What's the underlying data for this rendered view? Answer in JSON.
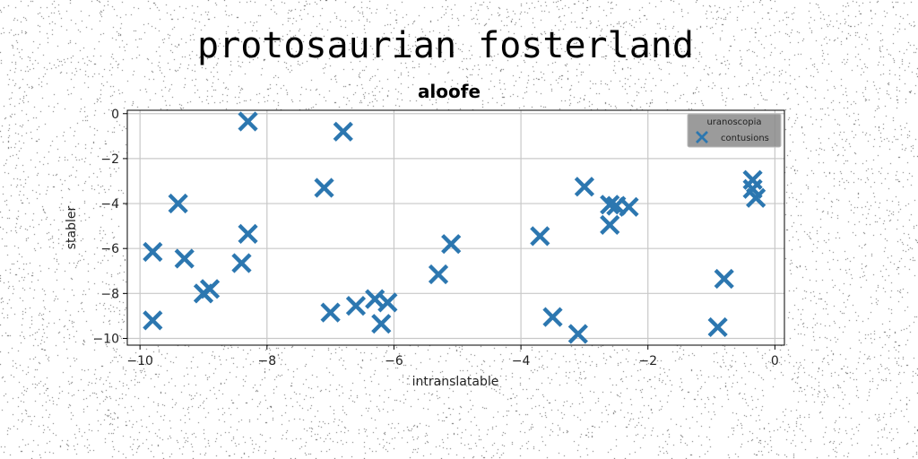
{
  "chart_data": {
    "type": "scatter",
    "suptitle": "protosaurian fosterland",
    "title": "aloofe",
    "xlabel": "intranslatable",
    "ylabel": "stabler",
    "xlim": [
      -10.2,
      0.15
    ],
    "ylim": [
      -10.3,
      0.15
    ],
    "xticks": [
      -10,
      -8,
      -6,
      -4,
      -2,
      0
    ],
    "yticks": [
      0,
      -2,
      -4,
      -6,
      -8,
      -10
    ],
    "grid": true,
    "legend": {
      "title": "uranoscopia",
      "placement": "top-right"
    },
    "series": [
      {
        "name": "contusions",
        "marker": "X",
        "color": "#2c77b0",
        "x": [
          -8.3,
          -6.8,
          -7.1,
          -9.4,
          -8.3,
          -9.8,
          -9.3,
          -8.4,
          -9.0,
          -8.9,
          -9.8,
          -7.0,
          -6.6,
          -6.3,
          -6.1,
          -6.2,
          -5.1,
          -5.3,
          -3.7,
          -3.5,
          -3.1,
          -3.0,
          -2.6,
          -2.5,
          -2.3,
          -2.6,
          -0.9,
          -0.8,
          -0.35,
          -0.35,
          -0.3
        ],
        "y": [
          -0.35,
          -0.8,
          -3.3,
          -4.0,
          -5.35,
          -6.15,
          -6.45,
          -6.65,
          -8.0,
          -7.8,
          -9.2,
          -8.85,
          -8.55,
          -8.25,
          -8.4,
          -9.35,
          -5.8,
          -7.15,
          -5.45,
          -9.05,
          -9.8,
          -3.25,
          -4.05,
          -4.1,
          -4.15,
          -4.95,
          -9.5,
          -7.35,
          -2.95,
          -3.35,
          -3.75
        ]
      }
    ]
  }
}
